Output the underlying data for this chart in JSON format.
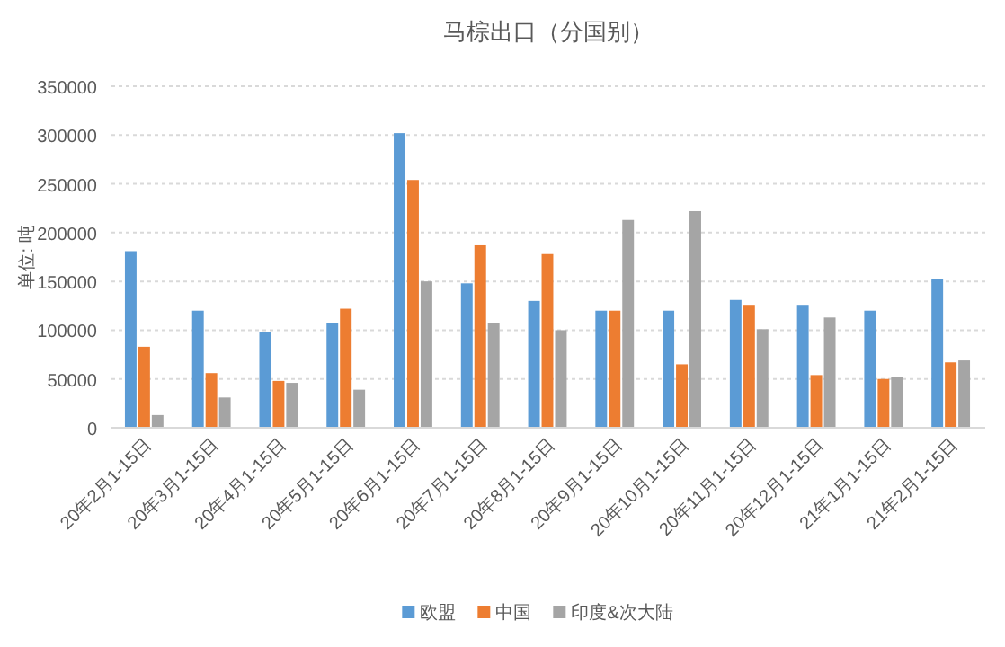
{
  "chart_data": {
    "type": "bar",
    "title": "马棕出口（分国别）",
    "ylabel": "单位: 吨",
    "categories": [
      "20年2月1-15日",
      "20年3月1-15日",
      "20年4月1-15日",
      "20年5月1-15日",
      "20年6月1-15日",
      "20年7月1-15日",
      "20年8月1-15日",
      "20年9月1-15日",
      "20年10月1-15日",
      "20年11月1-15日",
      "20年12月1-15日",
      "21年1月1-15日",
      "21年2月1-15日"
    ],
    "series": [
      {
        "name": "欧盟",
        "color": "#5b9bd5",
        "values": [
          181000,
          120000,
          98000,
          107000,
          302000,
          148000,
          130000,
          120000,
          120000,
          131000,
          126000,
          120000,
          152000
        ]
      },
      {
        "name": "中国",
        "color": "#ed7d31",
        "values": [
          83000,
          56000,
          48000,
          122000,
          254000,
          187000,
          178000,
          120000,
          65000,
          126000,
          54000,
          50000,
          67000
        ]
      },
      {
        "name": "印度&次大陆",
        "color": "#a5a5a5",
        "values": [
          13000,
          31000,
          46000,
          39000,
          150000,
          107000,
          100000,
          213000,
          222000,
          101000,
          113000,
          52000,
          69000
        ]
      }
    ],
    "ylim": [
      0,
      350000
    ],
    "yticks": [
      0,
      50000,
      100000,
      150000,
      200000,
      250000,
      300000,
      350000
    ],
    "grid": "y",
    "legend": "bottom"
  }
}
